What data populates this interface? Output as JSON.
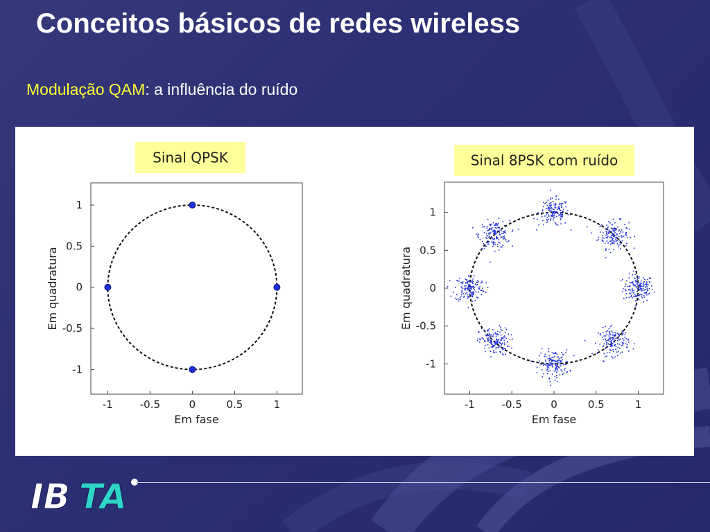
{
  "slide": {
    "title": "Conceitos básicos de redes wireless",
    "subtitle_highlight": "Modulação QAM",
    "subtitle_rest": ":  a influência do ruído"
  },
  "colors": {
    "background": "#2b2f73",
    "title": "#ffffff",
    "highlight": "#ffff33",
    "label_box": "#ffff99",
    "points": "#1f2fd6"
  },
  "logo": {
    "text": "IBTA"
  },
  "chart_data": [
    {
      "type": "scatter",
      "label": "Sinal QPSK",
      "xlabel": "Em fase",
      "ylabel": "Em quadratura",
      "xlim": [
        -1.2,
        1.3
      ],
      "ylim": [
        -1.3,
        1.27
      ],
      "xticks": [
        "-1",
        "-0.5",
        "0",
        "0.5",
        "1"
      ],
      "yticks": [
        "1",
        "0.5",
        "0",
        "-0.5",
        "-1"
      ],
      "circle_radius": 1,
      "points": [
        [
          0,
          1
        ],
        [
          1,
          0
        ],
        [
          0,
          -1
        ],
        [
          -1,
          0
        ]
      ],
      "noise": false
    },
    {
      "type": "scatter",
      "label": "Sinal 8PSK com ruído",
      "xlabel": "Em fase",
      "ylabel": "Em quadratura",
      "xlim": [
        -1.3,
        1.3
      ],
      "ylim": [
        -1.4,
        1.4
      ],
      "xticks": [
        "-1",
        "-0.5",
        "0",
        "0.5",
        "1"
      ],
      "yticks": [
        "1",
        "0.5",
        "0",
        "-0.5",
        "-1"
      ],
      "circle_radius": 1,
      "points": [
        [
          1,
          0
        ],
        [
          0.707,
          0.707
        ],
        [
          0,
          1
        ],
        [
          -0.707,
          0.707
        ],
        [
          -1,
          0
        ],
        [
          -0.707,
          -0.707
        ],
        [
          0,
          -1
        ],
        [
          0.707,
          -0.707
        ]
      ],
      "noise": true,
      "noise_std": 0.09,
      "samples_per_symbol": 150
    }
  ]
}
